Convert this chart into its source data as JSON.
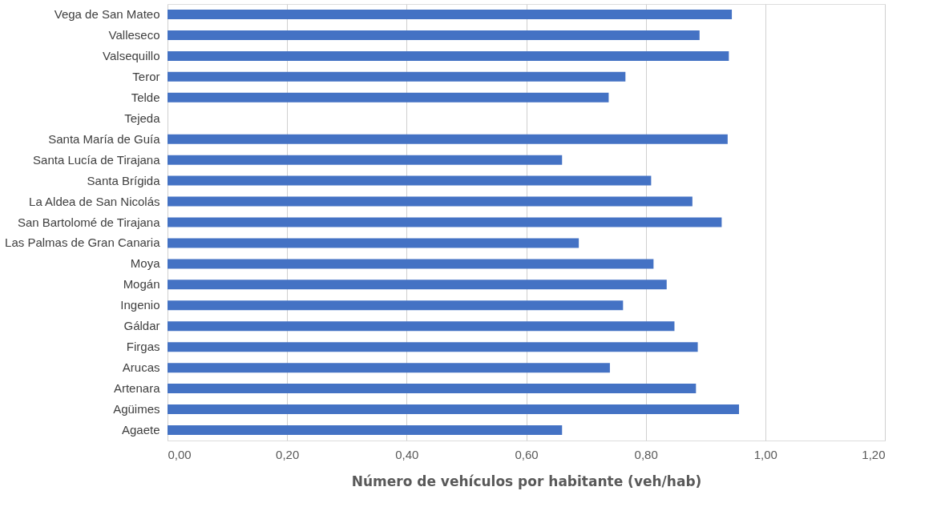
{
  "chart_data": {
    "type": "bar",
    "orientation": "horizontal",
    "xlabel": "Número de vehículos por habitante (veh/hab)",
    "categories": [
      "Vega de San Mateo",
      "Valleseco",
      "Valsequillo",
      "Teror",
      "Telde",
      "Tejeda",
      "Santa María de Guía",
      "Santa Lucía de Tirajana",
      "Santa Brígida",
      "La Aldea de San Nicolás",
      "San Bartolomé de Tirajana",
      "Las Palmas de Gran Canaria",
      "Moya",
      "Mogán",
      "Ingenio",
      "Gáldar",
      "Firgas",
      "Arucas",
      "Artenara",
      "Agüimes",
      "Agaete"
    ],
    "values": [
      0.944,
      0.89,
      0.939,
      0.766,
      0.738,
      null,
      0.937,
      0.66,
      0.809,
      0.878,
      0.927,
      0.688,
      0.813,
      0.835,
      0.762,
      0.848,
      0.887,
      0.74,
      0.884,
      0.956,
      0.66
    ],
    "color": "#4472c4",
    "xlim": [
      0,
      1.2
    ],
    "xticks": [
      {
        "value": 0,
        "label": "0,00"
      },
      {
        "value": 0.2,
        "label": "0,20"
      },
      {
        "value": 0.4,
        "label": "0,40"
      },
      {
        "value": 0.6,
        "label": "0,60"
      },
      {
        "value": 0.8,
        "label": "0,80"
      },
      {
        "value": 1.0,
        "label": "1,00"
      },
      {
        "value": 1.2,
        "label": "1,20"
      }
    ],
    "grid": "x"
  }
}
